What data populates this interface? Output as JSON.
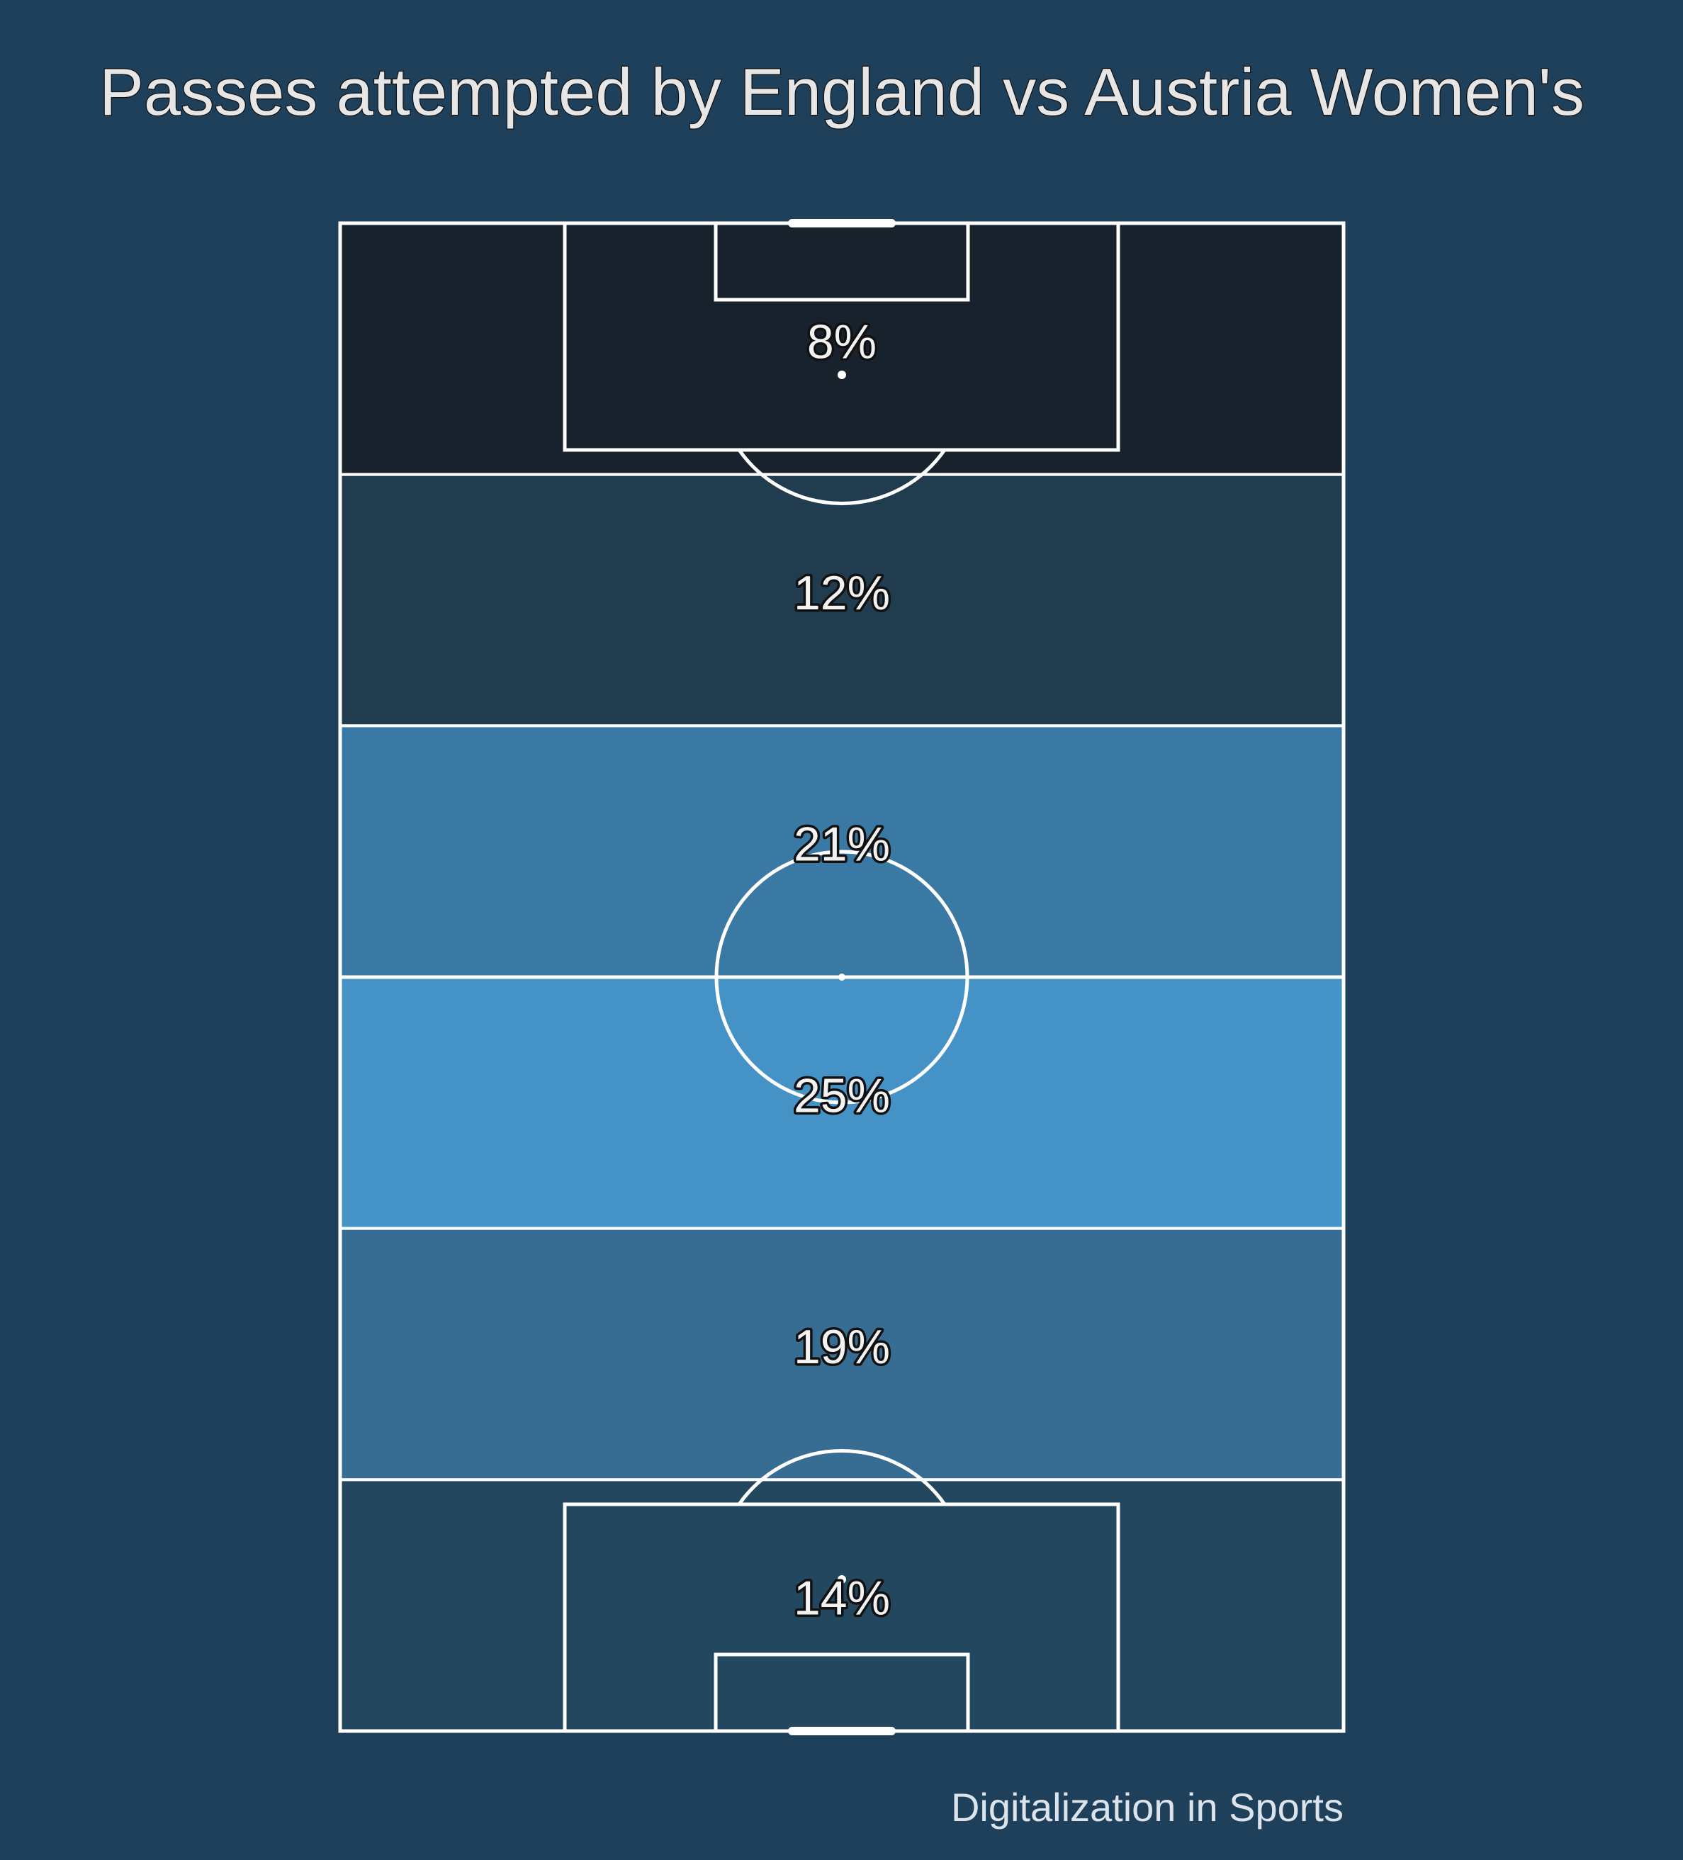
{
  "chart_data": {
    "type": "heatmap",
    "title": "Passes attempted by England vs Austria Women's",
    "credit": "Digitalization in Sports",
    "zones": [
      {
        "label": "8%",
        "value": 8,
        "color": "#17222d"
      },
      {
        "label": "12%",
        "value": 12,
        "color": "#213b4f"
      },
      {
        "label": "21%",
        "value": 21,
        "color": "#3a79a3"
      },
      {
        "label": "25%",
        "value": 25,
        "color": "#4593c6"
      },
      {
        "label": "19%",
        "value": 19,
        "color": "#376d93"
      },
      {
        "label": "14%",
        "value": 14,
        "color": "#244760"
      }
    ]
  }
}
